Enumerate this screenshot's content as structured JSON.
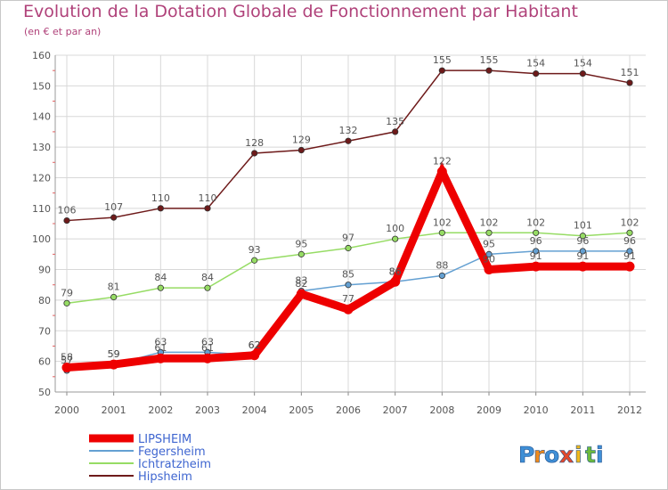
{
  "chart_data": {
    "type": "line",
    "title": "Evolution de la Dotation Globale de Fonctionnement par Habitant",
    "subtitle": "(en € et par an)",
    "xlabel": "",
    "ylabel": "",
    "ylim": [
      50,
      160
    ],
    "yticks": [
      50,
      60,
      70,
      80,
      90,
      100,
      110,
      120,
      130,
      140,
      150,
      160
    ],
    "grid": true,
    "legend_position": "bottom-left",
    "categories": [
      "2000",
      "2001",
      "2002",
      "2003",
      "2004",
      "2005",
      "2006",
      "2007",
      "2008",
      "2009",
      "2010",
      "2011",
      "2012"
    ],
    "series": [
      {
        "name": "Hipsheim",
        "color": "#6e1a1a",
        "values": [
          106,
          107,
          110,
          110,
          128,
          129,
          132,
          135,
          155,
          155,
          154,
          154,
          151
        ]
      },
      {
        "name": "Ichtratzheim",
        "color": "#96dc64",
        "values": [
          79,
          81,
          84,
          84,
          93,
          95,
          97,
          100,
          102,
          102,
          102,
          101,
          102
        ]
      },
      {
        "name": "Fegersheim",
        "color": "#64a0d2",
        "values": [
          57,
          59,
          63,
          63,
          62,
          83,
          85,
          86,
          88,
          95,
          96,
          96,
          96
        ]
      },
      {
        "name": "LIPSHEIM",
        "color": "#ee0000",
        "values": [
          58,
          59,
          61,
          61,
          62,
          82,
          77,
          86,
          122,
          90,
          91,
          91,
          91
        ]
      }
    ],
    "legend": [
      {
        "name": "LIPSHEIM",
        "color": "#ee0000"
      },
      {
        "name": "Fegersheim",
        "color": "#64a0d2"
      },
      {
        "name": "Ichtratzheim",
        "color": "#96dc64"
      },
      {
        "name": "Hipsheim",
        "color": "#6e1a1a"
      }
    ]
  },
  "brand": {
    "letters": [
      "P",
      "r",
      "o",
      "x",
      "i",
      "t",
      "i"
    ],
    "colors": [
      "#3f8fd6",
      "#f08a1c",
      "#3f8fd6",
      "#e34a2c",
      "#f0b81c",
      "#6cba3c",
      "#3f8fd6"
    ]
  }
}
